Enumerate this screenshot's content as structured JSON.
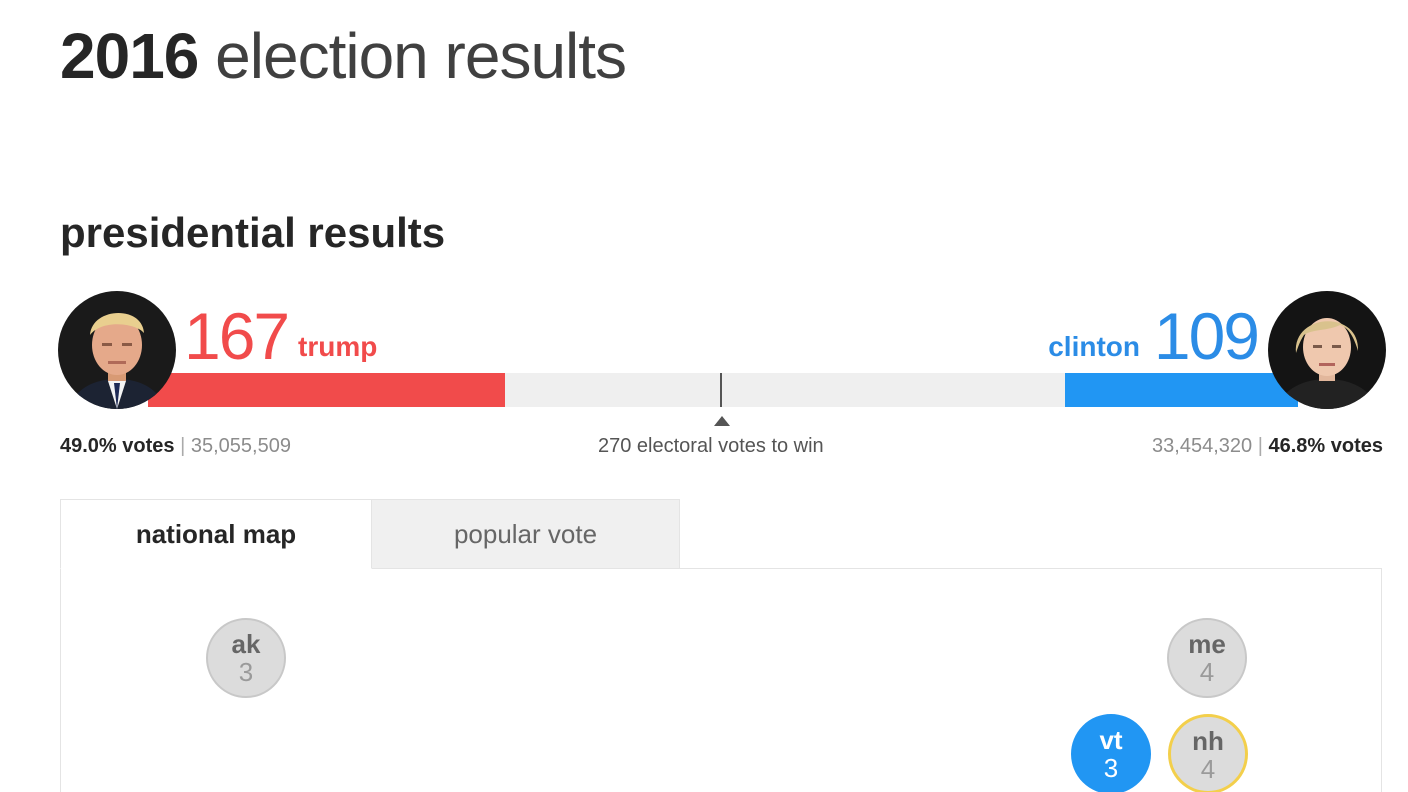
{
  "header": {
    "title_year": "2016",
    "title_rest": "election results"
  },
  "section": {
    "title": "presidential results"
  },
  "candidates": {
    "trump": {
      "name": "trump",
      "electoral_votes": "167",
      "popular_pct": "49.0% votes",
      "popular_raw": "35,055,509",
      "color": "#f14b4b"
    },
    "clinton": {
      "name": "clinton",
      "electoral_votes": "109",
      "popular_pct": "46.8% votes",
      "popular_raw": "33,454,320",
      "color": "#2196f3"
    }
  },
  "bar": {
    "total_electoral_votes": 538,
    "win_threshold": 270,
    "trump_votes": 167,
    "clinton_votes": 109,
    "separator": "|",
    "win_label": "270 electoral votes to win"
  },
  "tabs": {
    "national_map": "national map",
    "popular_vote": "popular vote",
    "active": "national map"
  },
  "states": [
    {
      "abbr": "ak",
      "ev": "3",
      "status": "undecided"
    },
    {
      "abbr": "me",
      "ev": "4",
      "status": "undecided"
    },
    {
      "abbr": "vt",
      "ev": "3",
      "status": "clinton"
    },
    {
      "abbr": "nh",
      "ev": "4",
      "status": "undecided",
      "highlighted": true
    }
  ],
  "colors": {
    "republican": "#f14b4b",
    "democrat": "#2196f3",
    "undecided": "#dcdcdc",
    "highlight": "#f3cf4b"
  }
}
